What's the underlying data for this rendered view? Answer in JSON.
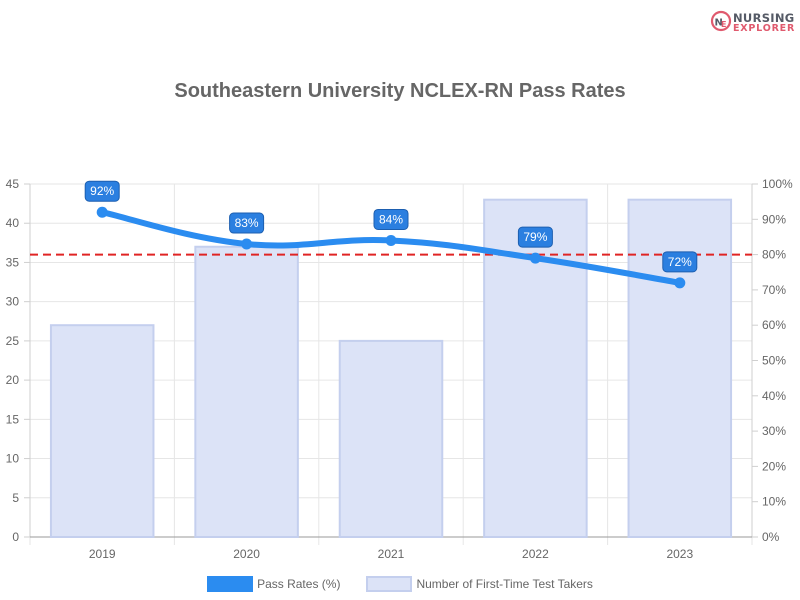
{
  "brand": {
    "line1": "NURSING",
    "line2": "EXPLORER",
    "accent": "#e05a6e"
  },
  "chart_data": {
    "type": "bar+line",
    "title": "Southeastern University NCLEX-RN Pass Rates",
    "categories": [
      "2019",
      "2020",
      "2021",
      "2022",
      "2023"
    ],
    "series": [
      {
        "name": "Number of First-Time Test Takers",
        "type": "bar",
        "axis": "left",
        "values": [
          27,
          37,
          25,
          43,
          43
        ],
        "color": "#dce3f7",
        "border": "#c4cfee"
      },
      {
        "name": "Pass Rates (%)",
        "type": "line",
        "axis": "right",
        "values": [
          92,
          83,
          84,
          79,
          72
        ],
        "labels": [
          "92%",
          "83%",
          "84%",
          "79%",
          "72%"
        ],
        "color": "#2b8cf0"
      }
    ],
    "reference_line": {
      "axis": "right",
      "value": 80,
      "style": "dashed",
      "color": "#e02424"
    },
    "y_left": {
      "min": 0,
      "max": 45,
      "step": 5,
      "ticks": [
        "0",
        "5",
        "10",
        "15",
        "20",
        "25",
        "30",
        "35",
        "40",
        "45"
      ]
    },
    "y_right": {
      "min": 0,
      "max": 100,
      "step": 10,
      "ticks": [
        "0%",
        "10%",
        "20%",
        "30%",
        "40%",
        "50%",
        "60%",
        "70%",
        "80%",
        "90%",
        "100%"
      ]
    },
    "grid": true,
    "legend_position": "bottom"
  }
}
